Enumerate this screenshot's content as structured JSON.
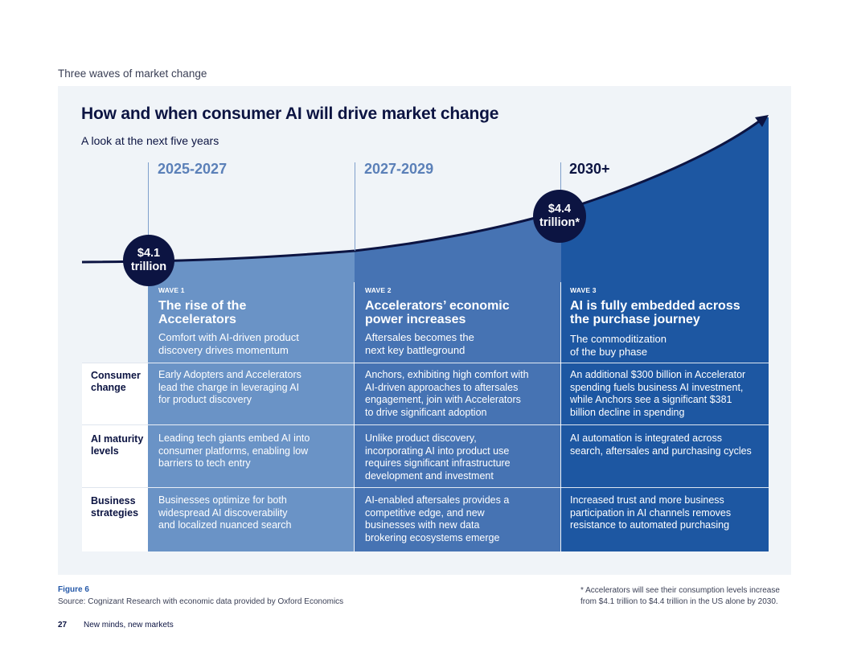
{
  "page_header": {
    "section_label": "Three waves of market change"
  },
  "figure": {
    "title": "How and when consumer AI will drive market change",
    "subtitle": "A look at the next five years",
    "periods": [
      "2025-2027",
      "2027-2029",
      "2030+"
    ],
    "markers": [
      {
        "line1": "$4.1",
        "line2": "trillion"
      },
      {
        "line1": "$4.4",
        "line2": "trillion*"
      }
    ],
    "waves": [
      {
        "tag": "WAVE 1",
        "title_line1": "The rise of the",
        "title_line2": "Accelerators",
        "desc_line1": "Comfort with AI-driven product",
        "desc_line2": "discovery drives momentum"
      },
      {
        "tag": "WAVE 2",
        "title_line1": "Accelerators’ economic",
        "title_line2": "power increases",
        "desc_line1": "Aftersales becomes the",
        "desc_line2": "next key battleground"
      },
      {
        "tag": "WAVE 3",
        "title_line1": "AI is fully embedded across",
        "title_line2": "the purchase journey",
        "desc_line1": "The commoditization",
        "desc_line2": "of the buy phase"
      }
    ],
    "rows": [
      {
        "label_line1": "Consumer",
        "label_line2": "change",
        "cells": [
          [
            "Early Adopters and Accelerators",
            "lead the charge in leveraging AI",
            "for product discovery"
          ],
          [
            "Anchors, exhibiting high comfort with",
            "AI-driven approaches to aftersales",
            "engagement, join with Accelerators",
            "to drive significant adoption"
          ],
          [
            "An additional $300 billion in Accelerator",
            "spending fuels business AI investment,",
            "while Anchors see a significant $381",
            "billion decline in spending"
          ]
        ]
      },
      {
        "label_line1": "AI maturity",
        "label_line2": "levels",
        "cells": [
          [
            "Leading tech giants embed AI into",
            "consumer platforms, enabling low",
            "barriers to tech entry"
          ],
          [
            "Unlike product discovery,",
            "incorporating AI into product use",
            "requires significant infrastructure",
            "development and investment"
          ],
          [
            "AI automation is integrated across",
            "search, aftersales and purchasing cycles"
          ]
        ]
      },
      {
        "label_line1": "Business",
        "label_line2": "strategies",
        "cells": [
          [
            "Businesses optimize for both",
            "widespread AI discoverability",
            "and localized nuanced search"
          ],
          [
            "AI-enabled aftersales provides a",
            "competitive edge, and new",
            "businesses with new data",
            "brokering ecosystems emerge"
          ],
          [
            "Increased trust and more business",
            "participation in AI channels removes",
            "resistance to automated purchasing"
          ]
        ]
      }
    ],
    "colors": {
      "navy": "#0c1442",
      "wave1": "#6a93c6",
      "wave2": "#4673b3",
      "wave3": "#1d57a2",
      "panel": "#f0f4f8"
    }
  },
  "footer": {
    "figure_number": "Figure 6",
    "source": "Source: Cognizant Research with economic data provided by Oxford Economics",
    "footnote_line1": "* Accelerators will see their consumption levels increase",
    "footnote_line2": "from $4.1 trillion to $4.4 trillion in the US alone by 2030.",
    "page_number": "27",
    "publication_title": "New minds, new markets"
  }
}
